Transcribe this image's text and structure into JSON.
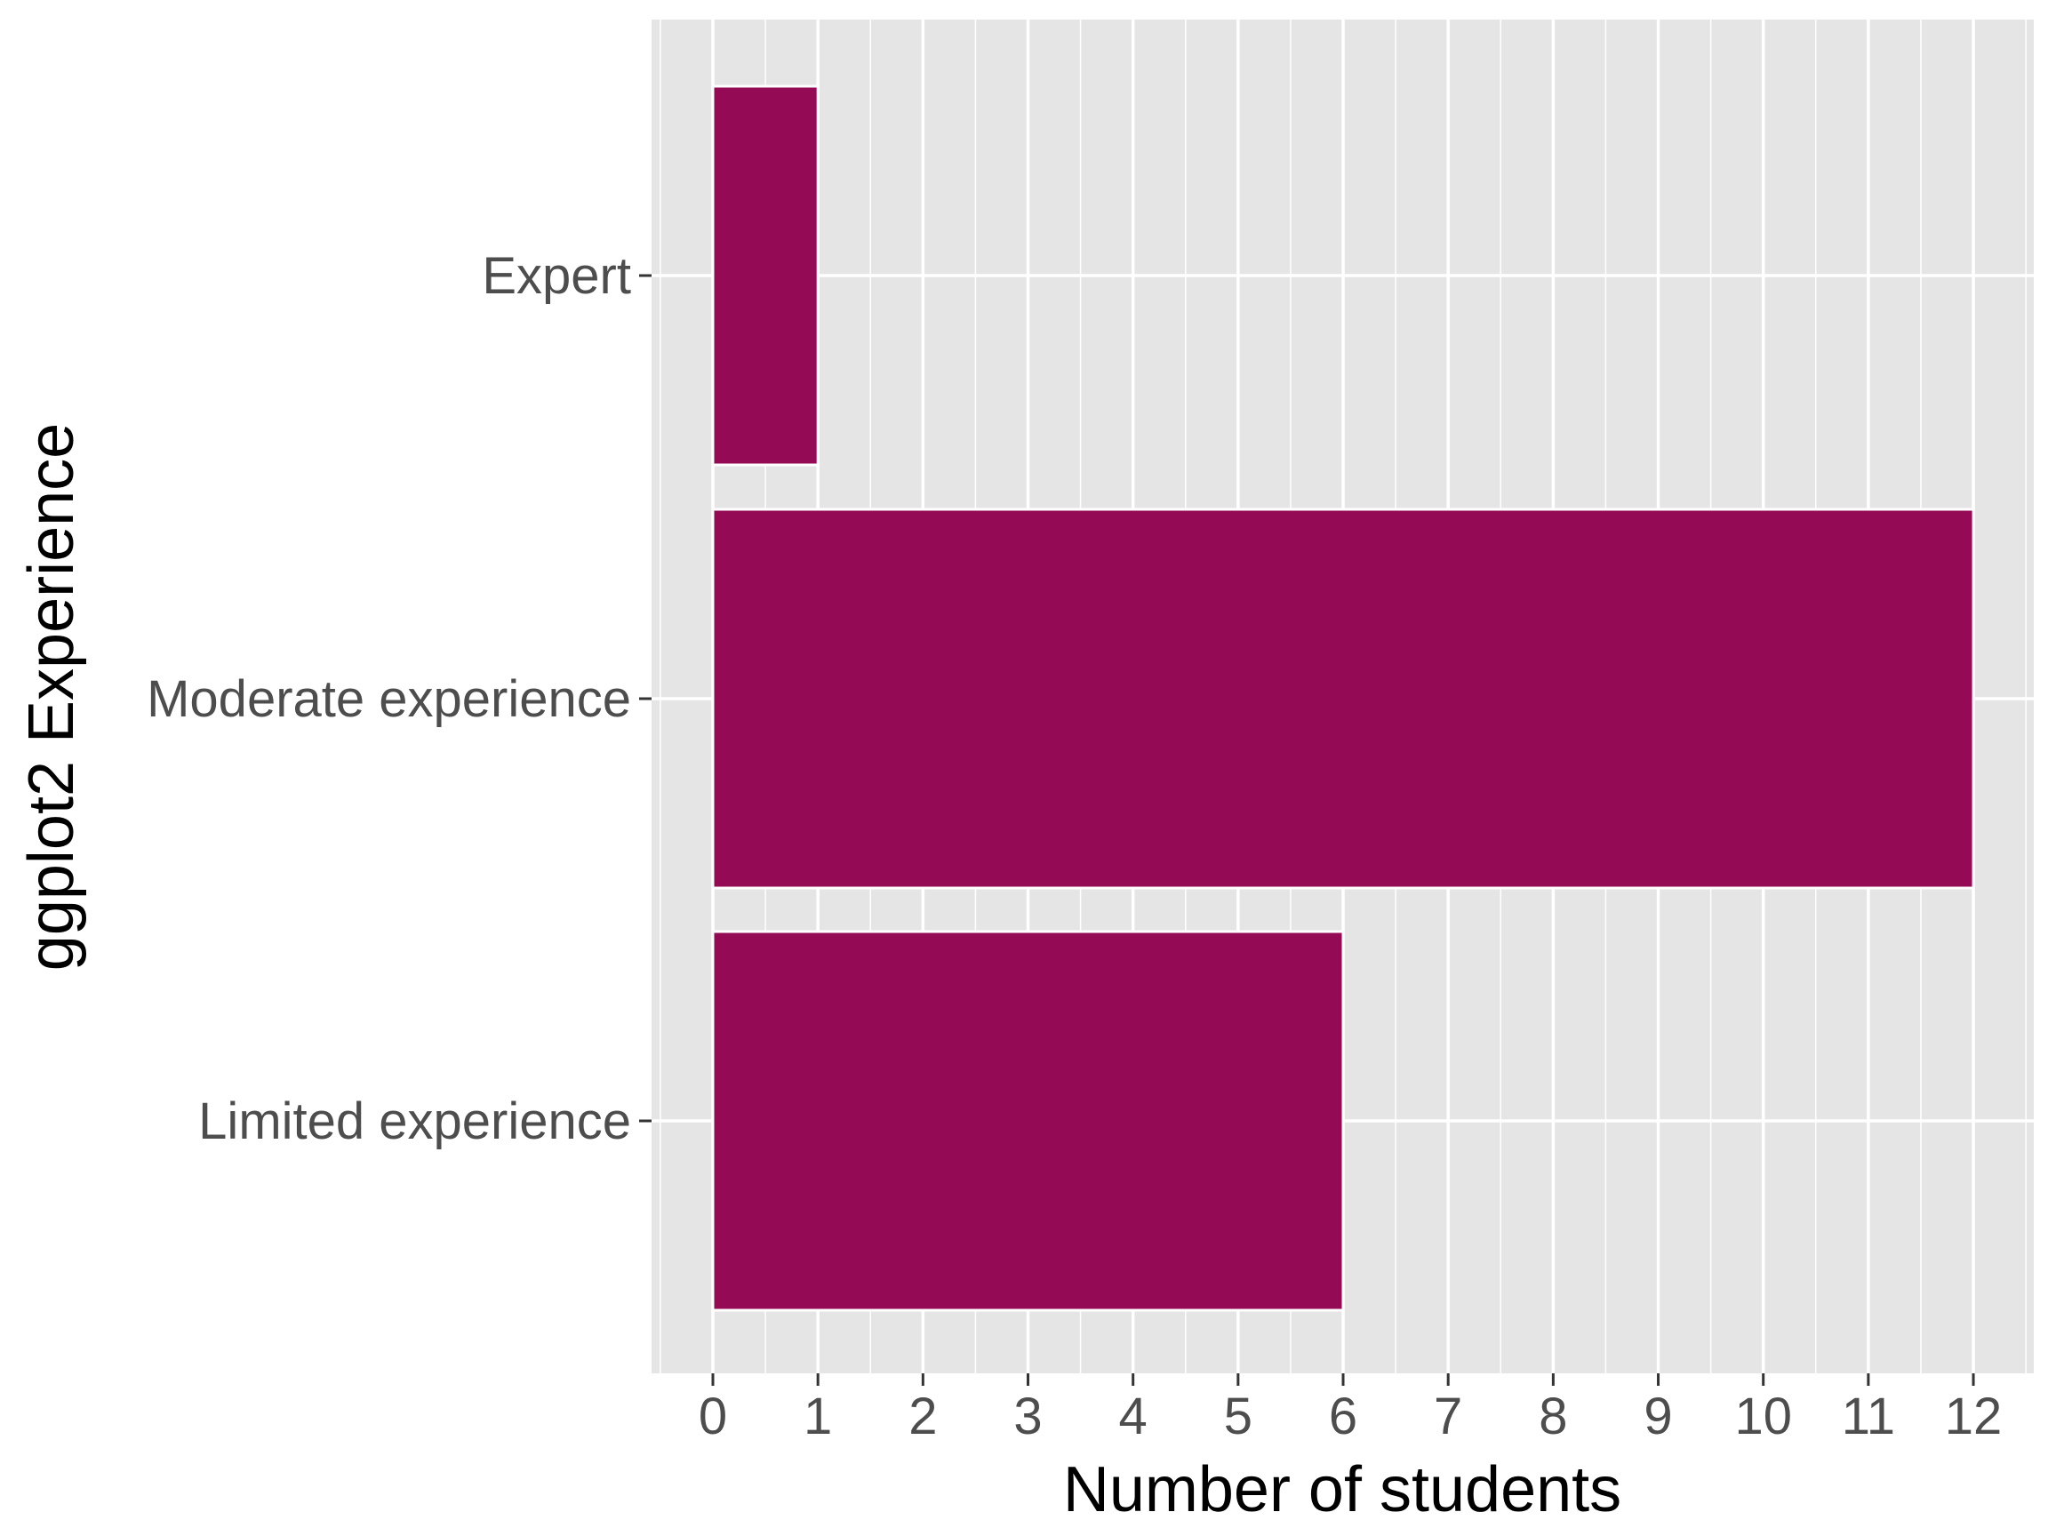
{
  "chart_data": {
    "type": "bar",
    "orientation": "horizontal",
    "categories": [
      "Expert",
      "Moderate experience",
      "Limited experience"
    ],
    "values": [
      1,
      12,
      6
    ],
    "xlabel": "Number of students",
    "ylabel": "ggplot2 Experience",
    "x_ticks": [
      "0",
      "1",
      "2",
      "3",
      "4",
      "5",
      "6",
      "7",
      "8",
      "9",
      "10",
      "11",
      "12"
    ],
    "xlim": [
      -0.6,
      12.6
    ],
    "grid": true,
    "legend": "none",
    "bar_color": "#940A55",
    "panel_color": "#E5E5E5",
    "grid_color": "#FFFFFF"
  }
}
